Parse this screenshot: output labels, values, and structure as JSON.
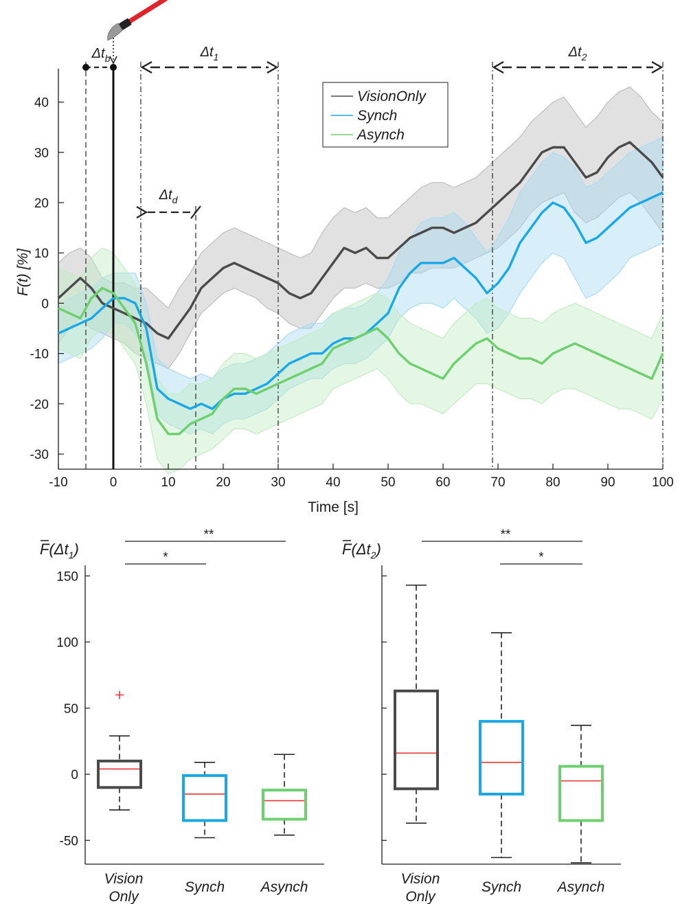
{
  "chart_data": [
    {
      "type": "line",
      "xlabel": "Time [s]",
      "ylabel": "F(t) [%]",
      "xlim": [
        -10,
        100
      ],
      "ylim": [
        -33,
        48
      ],
      "x_ticks": [
        "-10",
        "0",
        "10",
        "20",
        "30",
        "40",
        "50",
        "60",
        "70",
        "80",
        "90",
        "100"
      ],
      "y_ticks": [
        "-30",
        "-20",
        "-10",
        "0",
        "10",
        "20",
        "30",
        "40"
      ],
      "legend": {
        "placement": "top-center",
        "entries": [
          "VisionOnly",
          "Synch",
          "Asynch"
        ]
      },
      "annotations": {
        "dt_b": {
          "text": "Δt",
          "sub": "b",
          "from": -5,
          "to": 0
        },
        "dt_1": {
          "text": "Δt",
          "sub": "1",
          "from": 5,
          "to": 30
        },
        "dt_2": {
          "text": "Δt",
          "sub": "2",
          "from": 69,
          "to": 100
        },
        "dt_d": {
          "text": "Δt",
          "sub": "d",
          "from": 5,
          "to": 15
        }
      },
      "stimulus_icon": "paintbrush-icon",
      "series": [
        {
          "name": "VisionOnly",
          "color": "#4a4a4a",
          "band_color": "#bdbdbd",
          "x": [
            -10,
            -8,
            -6,
            -4,
            -2,
            0,
            2,
            4,
            6,
            8,
            10,
            12,
            14,
            16,
            18,
            20,
            22,
            24,
            26,
            28,
            30,
            32,
            34,
            36,
            38,
            40,
            42,
            44,
            46,
            48,
            50,
            52,
            54,
            56,
            58,
            60,
            62,
            64,
            66,
            68,
            70,
            72,
            74,
            76,
            78,
            80,
            82,
            84,
            86,
            88,
            90,
            92,
            94,
            96,
            98,
            100
          ],
          "y": [
            1,
            3,
            5,
            3,
            0,
            -1,
            -2,
            -3,
            -4,
            -6,
            -7,
            -4,
            -1,
            3,
            5,
            7,
            8,
            7,
            6,
            5,
            4,
            2,
            1,
            2,
            5,
            8,
            11,
            10,
            11,
            9,
            9,
            11,
            13,
            14,
            15,
            15,
            14,
            15,
            16,
            18,
            20,
            22,
            24,
            27,
            30,
            31,
            31,
            28,
            25,
            26,
            29,
            31,
            32,
            30,
            28,
            25
          ],
          "lo": [
            -8,
            -5,
            -3,
            -5,
            -6,
            -7,
            -8,
            -10,
            -11,
            -12,
            -13,
            -10,
            -6,
            -2,
            0,
            2,
            3,
            2,
            1,
            -1,
            -2,
            -4,
            -5,
            -5,
            -2,
            1,
            3,
            3,
            4,
            3,
            3,
            4,
            6,
            6,
            7,
            7,
            7,
            8,
            9,
            10,
            11,
            13,
            15,
            18,
            20,
            21,
            22,
            18,
            16,
            17,
            19,
            21,
            22,
            20,
            17,
            14
          ],
          "hi": [
            8,
            10,
            11,
            9,
            5,
            4,
            4,
            3,
            3,
            1,
            -1,
            3,
            6,
            10,
            12,
            14,
            15,
            14,
            13,
            12,
            11,
            10,
            9,
            10,
            14,
            17,
            19,
            18,
            19,
            17,
            17,
            19,
            21,
            23,
            24,
            24,
            23,
            24,
            25,
            27,
            29,
            31,
            33,
            36,
            38,
            40,
            41,
            38,
            35,
            37,
            40,
            42,
            43,
            41,
            38,
            36
          ]
        },
        {
          "name": "Synch",
          "color": "#1aa7e6",
          "band_color": "#a9dcf3",
          "x": [
            -10,
            -8,
            -6,
            -4,
            -2,
            0,
            2,
            4,
            6,
            8,
            10,
            12,
            14,
            16,
            18,
            20,
            22,
            24,
            26,
            28,
            30,
            32,
            34,
            36,
            38,
            40,
            42,
            44,
            46,
            48,
            50,
            52,
            54,
            56,
            58,
            60,
            62,
            64,
            66,
            68,
            70,
            72,
            74,
            76,
            78,
            80,
            82,
            84,
            86,
            88,
            90,
            92,
            94,
            96,
            98,
            100
          ],
          "y": [
            -6,
            -5,
            -4,
            -3,
            -1,
            1,
            1,
            0,
            -5,
            -17,
            -19,
            -20,
            -21,
            -20,
            -21,
            -19,
            -18,
            -18,
            -17,
            -16,
            -14,
            -12,
            -11,
            -10,
            -10,
            -8,
            -7,
            -7,
            -6,
            -4,
            -2,
            3,
            6,
            8,
            8,
            8,
            9,
            7,
            5,
            2,
            4,
            7,
            12,
            15,
            18,
            20,
            19,
            16,
            12,
            13,
            15,
            17,
            19,
            20,
            21,
            22
          ],
          "lo": [
            -12,
            -11,
            -10,
            -9,
            -7,
            -4,
            -4,
            -6,
            -10,
            -22,
            -24,
            -25,
            -26,
            -25,
            -26,
            -24,
            -23,
            -23,
            -22,
            -21,
            -19,
            -17,
            -16,
            -15,
            -15,
            -13,
            -12,
            -12,
            -11,
            -9,
            -7,
            -3,
            -1,
            0,
            0,
            -1,
            1,
            -1,
            -3,
            -6,
            -5,
            -2,
            2,
            5,
            8,
            10,
            9,
            5,
            1,
            2,
            4,
            6,
            9,
            10,
            11,
            12
          ],
          "hi": [
            -1,
            1,
            2,
            3,
            5,
            6,
            6,
            6,
            0,
            -11,
            -13,
            -14,
            -15,
            -14,
            -15,
            -13,
            -12,
            -12,
            -11,
            -10,
            -8,
            -6,
            -5,
            -4,
            -4,
            -2,
            -1,
            -1,
            0,
            2,
            5,
            10,
            13,
            16,
            17,
            17,
            18,
            16,
            13,
            10,
            13,
            17,
            22,
            25,
            28,
            30,
            29,
            27,
            23,
            24,
            26,
            28,
            30,
            31,
            32,
            33
          ]
        },
        {
          "name": "Asynch",
          "color": "#6dcf6d",
          "band_color": "#c3ecc3",
          "x": [
            -10,
            -8,
            -6,
            -4,
            -2,
            0,
            2,
            4,
            6,
            8,
            10,
            12,
            14,
            16,
            18,
            20,
            22,
            24,
            26,
            28,
            30,
            32,
            34,
            36,
            38,
            40,
            42,
            44,
            46,
            48,
            50,
            52,
            54,
            56,
            58,
            60,
            62,
            64,
            66,
            68,
            70,
            72,
            74,
            76,
            78,
            80,
            82,
            84,
            86,
            88,
            90,
            92,
            94,
            96,
            98,
            100
          ],
          "y": [
            -1,
            -2,
            -3,
            1,
            3,
            2,
            -1,
            -4,
            -12,
            -23,
            -26,
            -26,
            -24,
            -23,
            -22,
            -19,
            -17,
            -17,
            -18,
            -17,
            -16,
            -15,
            -14,
            -13,
            -12,
            -9,
            -8,
            -7,
            -6,
            -5,
            -7,
            -10,
            -12,
            -13,
            -14,
            -15,
            -12,
            -10,
            -8,
            -7,
            -9,
            -10,
            -11,
            -11,
            -12,
            -10,
            -9,
            -8,
            -9,
            -10,
            -11,
            -12,
            -13,
            -14,
            -15,
            -10
          ],
          "lo": [
            -9,
            -10,
            -11,
            -7,
            -5,
            -6,
            -9,
            -12,
            -20,
            -31,
            -34,
            -33,
            -31,
            -30,
            -29,
            -27,
            -25,
            -25,
            -26,
            -25,
            -24,
            -23,
            -22,
            -21,
            -20,
            -17,
            -16,
            -15,
            -14,
            -13,
            -15,
            -18,
            -20,
            -20,
            -21,
            -22,
            -20,
            -18,
            -16,
            -16,
            -17,
            -18,
            -19,
            -19,
            -20,
            -18,
            -17,
            -17,
            -18,
            -19,
            -20,
            -21,
            -21,
            -22,
            -23,
            -19
          ],
          "hi": [
            7,
            6,
            5,
            9,
            11,
            10,
            7,
            4,
            -4,
            -15,
            -18,
            -18,
            -16,
            -16,
            -15,
            -12,
            -10,
            -10,
            -11,
            -10,
            -9,
            -8,
            -7,
            -6,
            -5,
            -2,
            -1,
            0,
            1,
            2,
            1,
            -2,
            -4,
            -5,
            -6,
            -7,
            -4,
            -2,
            0,
            1,
            -1,
            -2,
            -3,
            -3,
            -4,
            -2,
            -1,
            0,
            -1,
            -2,
            -3,
            -4,
            -5,
            -6,
            -7,
            -2
          ]
        }
      ]
    },
    {
      "type": "box",
      "ylabel_main": "F",
      "ylabel_sub": "Δt",
      "ylabel_subscript": "1",
      "ylim": [
        -68,
        158
      ],
      "y_ticks": [
        "-50",
        "0",
        "50",
        "100",
        "150"
      ],
      "categories": [
        {
          "line1": "Vision",
          "line2": "Only"
        },
        {
          "line1": "Synch",
          "line2": ""
        },
        {
          "line1": "Asynch",
          "line2": ""
        }
      ],
      "boxes": [
        {
          "name": "VisionOnly",
          "color": "#4a4a4a",
          "min": -27,
          "q1": -10,
          "median": 4,
          "q3": 10,
          "max": 29,
          "outliers": [
            60
          ]
        },
        {
          "name": "Synch",
          "color": "#1aa7e6",
          "min": -48,
          "q1": -35,
          "median": -15,
          "q3": -1,
          "max": 9,
          "outliers": []
        },
        {
          "name": "Asynch",
          "color": "#6dcf6d",
          "min": -46,
          "q1": -34,
          "median": -20,
          "q3": -12,
          "max": 15,
          "outliers": []
        }
      ],
      "significance": [
        {
          "from": 0,
          "to": 2,
          "label": "**",
          "level": 2
        },
        {
          "from": 0,
          "to": 1,
          "label": "*",
          "level": 1
        }
      ]
    },
    {
      "type": "box",
      "ylabel_main": "F",
      "ylabel_sub": "Δt",
      "ylabel_subscript": "2",
      "ylim": [
        -68,
        158
      ],
      "y_ticks": [],
      "categories": [
        {
          "line1": "Vision",
          "line2": "Only"
        },
        {
          "line1": "Synch",
          "line2": ""
        },
        {
          "line1": "Asynch",
          "line2": ""
        }
      ],
      "boxes": [
        {
          "name": "VisionOnly",
          "color": "#4a4a4a",
          "min": -37,
          "q1": -11,
          "median": 16,
          "q3": 63,
          "max": 143,
          "outliers": []
        },
        {
          "name": "Synch",
          "color": "#1aa7e6",
          "min": -63,
          "q1": -15,
          "median": 9,
          "q3": 40,
          "max": 107,
          "outliers": []
        },
        {
          "name": "Asynch",
          "color": "#6dcf6d",
          "min": -67,
          "q1": -35,
          "median": -5,
          "q3": 6,
          "max": 37,
          "outliers": []
        }
      ],
      "significance": [
        {
          "from": 0,
          "to": 2,
          "label": "**",
          "level": 2
        },
        {
          "from": 1,
          "to": 2,
          "label": "*",
          "level": 1
        }
      ]
    }
  ],
  "colors": {
    "median": "#ee3333",
    "outlier": "#ee3333",
    "axis": "#1a1a1a"
  }
}
